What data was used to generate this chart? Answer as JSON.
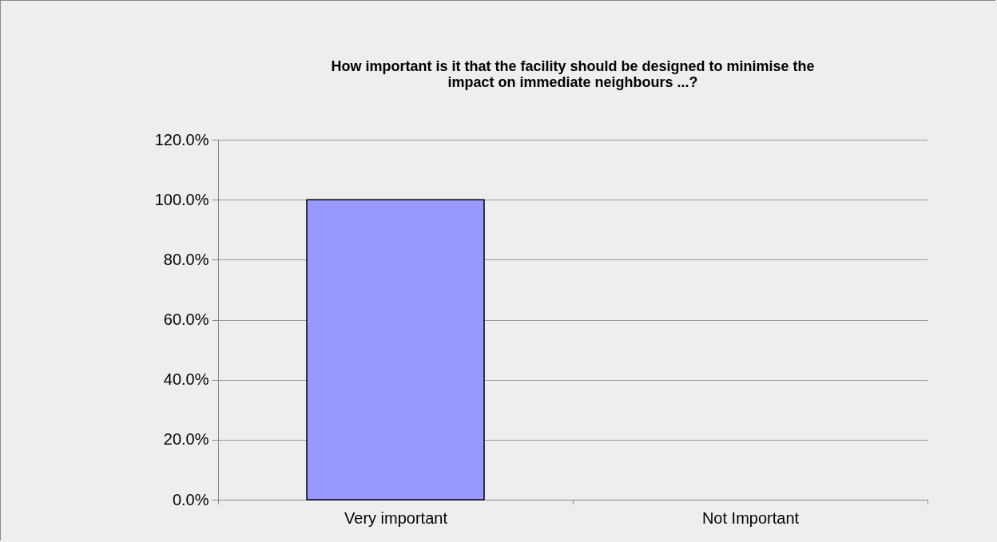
{
  "chart_data": {
    "type": "bar",
    "title": "How important is it that the facility should be designed to minimise the impact on immediate neighbours ...?",
    "categories": [
      "Very important",
      "Not Important"
    ],
    "values": [
      100,
      0
    ],
    "color": "#9999ff",
    "ylim": [
      0,
      120
    ],
    "yticks": [
      {
        "value": 0,
        "label": "0.0%"
      },
      {
        "value": 20,
        "label": "20.0%"
      },
      {
        "value": 40,
        "label": "40.0%"
      },
      {
        "value": 60,
        "label": "60.0%"
      },
      {
        "value": 80,
        "label": "80.0%"
      },
      {
        "value": 100,
        "label": "100.0%"
      },
      {
        "value": 120,
        "label": "120.0%"
      }
    ],
    "grid": "y"
  }
}
